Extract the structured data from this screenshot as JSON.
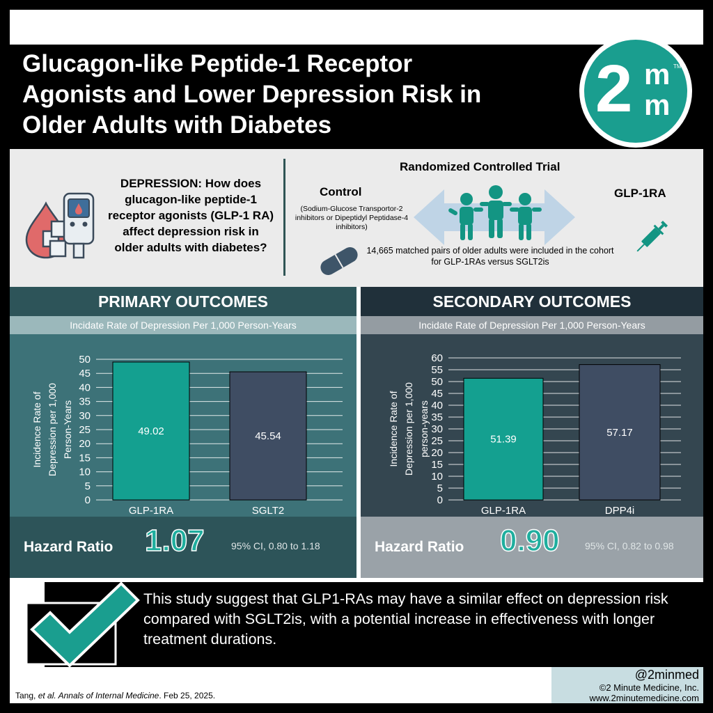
{
  "header": {
    "title_line1": "Glucagon-like Peptide-1 Receptor",
    "title_line2": "Agonists and Lower Depression Risk in",
    "title_line3": "Older Adults with Diabetes",
    "logo_digit": "2",
    "logo_letter_top": "m",
    "logo_letter_bottom": "m",
    "logo_tm": "TM"
  },
  "info": {
    "question": "DEPRESSION: How does glucagon-like peptide-1 receptor agonists (GLP-1 RA) affect depression risk in older adults with diabetes?",
    "trial_type": "Randomized Controlled Trial",
    "control_label": "Control",
    "control_description": "(Sodium-Glucose Transportor-2 inhibitors or Dipeptidyl Peptidase-4 inhibitors)",
    "treatment_label": "GLP-1RA",
    "cohort_text": "14,665 matched pairs of older adults were included in the cohort for GLP-1RAs versus SGLT2is"
  },
  "primary": {
    "heading": "PRIMARY OUTCOMES",
    "subheading": "Incidate Rate of Depression Per 1,000 Person-Years",
    "hr_label": "Hazard Ratio",
    "hr_value": "1.07",
    "hr_ci": "95% CI, 0.80 to 1.18"
  },
  "secondary": {
    "heading": "SECONDARY OUTCOMES",
    "subheading": "Incidate Rate of Depression Per 1,000 Person-Years",
    "hr_label": "Hazard Ratio",
    "hr_value": "0.90",
    "hr_ci": "95% CI, 0.82 to 0.98"
  },
  "chart_data": [
    {
      "type": "bar",
      "categories": [
        "GLP-1RA",
        "SGLT2"
      ],
      "values": [
        49.02,
        45.54
      ],
      "value_labels": [
        "49.02",
        "45.54"
      ],
      "ylabel_lines": [
        "Incidence Rate of",
        "Depression per 1,000",
        "Person-Years"
      ],
      "ylim": [
        0,
        50
      ],
      "ytick_step": 5,
      "grid": true,
      "bar_colors": [
        "#14a090",
        "#3f4d63"
      ]
    },
    {
      "type": "bar",
      "categories": [
        "GLP-1RA",
        "DPP4i"
      ],
      "values": [
        51.39,
        57.17
      ],
      "value_labels": [
        "51.39",
        "57.17"
      ],
      "ylabel_lines": [
        "Incidence Rate of",
        "Depression per 1,000",
        "person-years"
      ],
      "ylim": [
        0,
        60
      ],
      "ytick_step": 5,
      "grid": true,
      "bar_colors": [
        "#14a090",
        "#3f4d63"
      ]
    }
  ],
  "conclusion": {
    "text": "This study suggest that GLP1-RAs may have a similar effect on depression risk compared with SGLT2is, with a potential increase in effectiveness with longer treatment durations."
  },
  "footer": {
    "citation_authors": "Tang, ",
    "citation_etal": "et al.",
    "citation_journal": " Annals of Internal Medicine",
    "citation_date": ". Feb 25, 2025.",
    "handle": "@2minmed",
    "copyright": "©2 Minute Medicine, Inc.",
    "website": "www.2minutemedicine.com"
  },
  "colors": {
    "teal": "#1a9e8f",
    "primary_panel": "#3d7278",
    "secondary_panel": "#344650",
    "bar_dark": "#3f4d63"
  }
}
